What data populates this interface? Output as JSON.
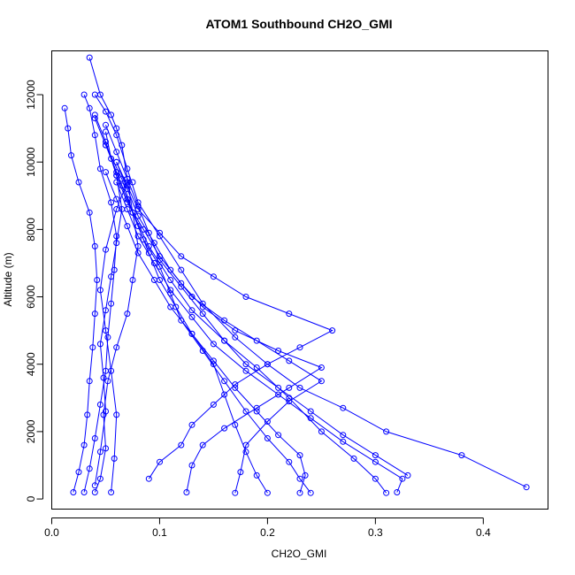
{
  "chart_data": {
    "type": "scatter",
    "title": "ATOM1 Southbound CH2O_GMI",
    "xlabel": "CH2O_GMI",
    "ylabel": "Altitude (m)",
    "xlim": [
      0.0,
      0.46
    ],
    "ylim": [
      -300,
      13300
    ],
    "xticks": [
      0.0,
      0.1,
      0.2,
      0.3,
      0.4
    ],
    "xtick_labels": [
      "0.0",
      "0.1",
      "0.2",
      "0.3",
      "0.4"
    ],
    "yticks": [
      0,
      2000,
      4000,
      6000,
      8000,
      10000,
      12000
    ],
    "ytick_labels": [
      "0",
      "2000",
      "4000",
      "6000",
      "8000",
      "10000",
      "12000"
    ],
    "grid": false,
    "legend": "none",
    "marker": "open-circle",
    "color": "#0000ff",
    "series": [
      {
        "values": [
          [
            0.04,
            200
          ],
          [
            0.045,
            600
          ],
          [
            0.05,
            1500
          ],
          [
            0.048,
            2500
          ],
          [
            0.052,
            3500
          ],
          [
            0.06,
            4500
          ],
          [
            0.07,
            5500
          ],
          [
            0.075,
            6500
          ],
          [
            0.08,
            7500
          ],
          [
            0.075,
            8500
          ],
          [
            0.07,
            9500
          ],
          [
            0.065,
            10500
          ],
          [
            0.06,
            11000
          ],
          [
            0.055,
            11400
          ],
          [
            0.045,
            12000
          ],
          [
            0.035,
            13100
          ]
        ]
      },
      {
        "values": [
          [
            0.44,
            350
          ],
          [
            0.38,
            1300
          ],
          [
            0.31,
            2000
          ],
          [
            0.27,
            2700
          ],
          [
            0.23,
            3300
          ],
          [
            0.2,
            4000
          ],
          [
            0.17,
            4800
          ],
          [
            0.14,
            5800
          ],
          [
            0.12,
            6800
          ],
          [
            0.1,
            7800
          ],
          [
            0.08,
            8800
          ],
          [
            0.07,
            9800
          ],
          [
            0.06,
            10800
          ],
          [
            0.05,
            11500
          ],
          [
            0.04,
            12000
          ]
        ]
      },
      {
        "values": [
          [
            0.33,
            700
          ],
          [
            0.3,
            1300
          ],
          [
            0.27,
            1900
          ],
          [
            0.24,
            2600
          ],
          [
            0.21,
            3300
          ],
          [
            0.18,
            4000
          ],
          [
            0.16,
            4700
          ],
          [
            0.13,
            5600
          ],
          [
            0.11,
            6500
          ],
          [
            0.09,
            7500
          ],
          [
            0.075,
            8500
          ],
          [
            0.065,
            9500
          ],
          [
            0.05,
            10500
          ],
          [
            0.04,
            11300
          ]
        ]
      },
      {
        "values": [
          [
            0.31,
            180
          ],
          [
            0.3,
            600
          ],
          [
            0.28,
            1200
          ],
          [
            0.25,
            2000
          ],
          [
            0.22,
            3000
          ],
          [
            0.19,
            3900
          ],
          [
            0.16,
            4700
          ],
          [
            0.14,
            5500
          ],
          [
            0.12,
            6300
          ],
          [
            0.1,
            7100
          ],
          [
            0.09,
            7900
          ],
          [
            0.08,
            8700
          ],
          [
            0.07,
            9500
          ],
          [
            0.06,
            10300
          ],
          [
            0.05,
            11100
          ]
        ]
      },
      {
        "values": [
          [
            0.24,
            180
          ],
          [
            0.23,
            600
          ],
          [
            0.22,
            1100
          ],
          [
            0.2,
            1800
          ],
          [
            0.18,
            2600
          ],
          [
            0.16,
            3500
          ],
          [
            0.14,
            4400
          ],
          [
            0.12,
            5300
          ],
          [
            0.11,
            6100
          ],
          [
            0.1,
            6900
          ],
          [
            0.085,
            7700
          ],
          [
            0.075,
            8500
          ],
          [
            0.065,
            9300
          ],
          [
            0.055,
            10100
          ],
          [
            0.05,
            10900
          ]
        ]
      },
      {
        "values": [
          [
            0.2,
            180
          ],
          [
            0.19,
            700
          ],
          [
            0.18,
            1400
          ],
          [
            0.17,
            2200
          ],
          [
            0.16,
            3100
          ],
          [
            0.15,
            4000
          ],
          [
            0.13,
            4900
          ],
          [
            0.115,
            5700
          ],
          [
            0.1,
            6500
          ],
          [
            0.09,
            7300
          ],
          [
            0.08,
            8100
          ],
          [
            0.07,
            8900
          ],
          [
            0.06,
            9700
          ],
          [
            0.05,
            10500
          ]
        ]
      },
      {
        "values": [
          [
            0.17,
            180
          ],
          [
            0.175,
            800
          ],
          [
            0.18,
            1600
          ],
          [
            0.2,
            2300
          ],
          [
            0.22,
            2900
          ],
          [
            0.25,
            3500
          ],
          [
            0.22,
            4100
          ],
          [
            0.19,
            4700
          ],
          [
            0.16,
            5300
          ],
          [
            0.13,
            6000
          ],
          [
            0.11,
            6800
          ],
          [
            0.095,
            7600
          ],
          [
            0.08,
            8400
          ],
          [
            0.07,
            9200
          ],
          [
            0.06,
            10000
          ]
        ]
      },
      {
        "values": [
          [
            0.125,
            200
          ],
          [
            0.13,
            1000
          ],
          [
            0.14,
            1600
          ],
          [
            0.16,
            2100
          ],
          [
            0.19,
            2700
          ],
          [
            0.22,
            3300
          ],
          [
            0.25,
            3900
          ],
          [
            0.21,
            4400
          ],
          [
            0.17,
            5000
          ],
          [
            0.14,
            5700
          ],
          [
            0.12,
            6400
          ],
          [
            0.1,
            7200
          ],
          [
            0.085,
            8000
          ],
          [
            0.07,
            8800
          ],
          [
            0.06,
            9600
          ]
        ]
      },
      {
        "values": [
          [
            0.02,
            200
          ],
          [
            0.025,
            800
          ],
          [
            0.03,
            1600
          ],
          [
            0.033,
            2500
          ],
          [
            0.035,
            3500
          ],
          [
            0.038,
            4500
          ],
          [
            0.04,
            5500
          ],
          [
            0.042,
            6500
          ],
          [
            0.04,
            7500
          ],
          [
            0.035,
            8500
          ],
          [
            0.025,
            9400
          ],
          [
            0.018,
            10200
          ],
          [
            0.015,
            11000
          ],
          [
            0.012,
            11600
          ]
        ]
      },
      {
        "values": [
          [
            0.03,
            200
          ],
          [
            0.035,
            900
          ],
          [
            0.04,
            1800
          ],
          [
            0.045,
            2800
          ],
          [
            0.05,
            3800
          ],
          [
            0.052,
            4800
          ],
          [
            0.055,
            5800
          ],
          [
            0.058,
            6800
          ],
          [
            0.06,
            7800
          ],
          [
            0.055,
            8800
          ],
          [
            0.045,
            9800
          ],
          [
            0.04,
            10800
          ],
          [
            0.035,
            11600
          ],
          [
            0.03,
            12000
          ]
        ]
      },
      {
        "values": [
          [
            0.055,
            200
          ],
          [
            0.058,
            1200
          ],
          [
            0.06,
            2500
          ],
          [
            0.055,
            3800
          ],
          [
            0.05,
            5000
          ],
          [
            0.045,
            6200
          ],
          [
            0.05,
            7400
          ],
          [
            0.06,
            8600
          ],
          [
            0.07,
            9400
          ],
          [
            0.075,
            9400
          ]
        ]
      },
      {
        "values": [
          [
            0.09,
            600
          ],
          [
            0.1,
            1100
          ],
          [
            0.12,
            1600
          ],
          [
            0.13,
            2200
          ],
          [
            0.15,
            2800
          ],
          [
            0.17,
            3400
          ],
          [
            0.2,
            4000
          ],
          [
            0.23,
            4500
          ],
          [
            0.26,
            5000
          ],
          [
            0.22,
            5500
          ],
          [
            0.18,
            6000
          ],
          [
            0.15,
            6600
          ],
          [
            0.12,
            7200
          ],
          [
            0.1,
            7900
          ],
          [
            0.08,
            8600
          ],
          [
            0.07,
            9300
          ],
          [
            0.06,
            10000
          ]
        ]
      },
      {
        "values": [
          [
            0.23,
            180
          ],
          [
            0.235,
            700
          ],
          [
            0.23,
            1300
          ],
          [
            0.21,
            1900
          ],
          [
            0.19,
            2600
          ],
          [
            0.17,
            3300
          ],
          [
            0.15,
            4100
          ],
          [
            0.13,
            4900
          ],
          [
            0.11,
            5700
          ],
          [
            0.095,
            6500
          ],
          [
            0.08,
            7300
          ],
          [
            0.07,
            8100
          ],
          [
            0.06,
            8900
          ],
          [
            0.05,
            9700
          ]
        ]
      },
      {
        "values": [
          [
            0.32,
            200
          ],
          [
            0.325,
            600
          ],
          [
            0.3,
            1100
          ],
          [
            0.27,
            1700
          ],
          [
            0.24,
            2400
          ],
          [
            0.21,
            3100
          ],
          [
            0.18,
            3800
          ],
          [
            0.15,
            4600
          ],
          [
            0.13,
            5400
          ],
          [
            0.11,
            6200
          ],
          [
            0.095,
            7000
          ],
          [
            0.08,
            7800
          ],
          [
            0.07,
            8600
          ],
          [
            0.06,
            9400
          ]
        ]
      },
      {
        "values": [
          [
            0.04,
            400
          ],
          [
            0.045,
            1400
          ],
          [
            0.05,
            2600
          ],
          [
            0.048,
            3600
          ],
          [
            0.045,
            4600
          ],
          [
            0.05,
            5600
          ],
          [
            0.055,
            6600
          ],
          [
            0.06,
            7600
          ],
          [
            0.065,
            8600
          ],
          [
            0.06,
            9600
          ],
          [
            0.05,
            10600
          ],
          [
            0.04,
            11400
          ]
        ]
      }
    ]
  }
}
